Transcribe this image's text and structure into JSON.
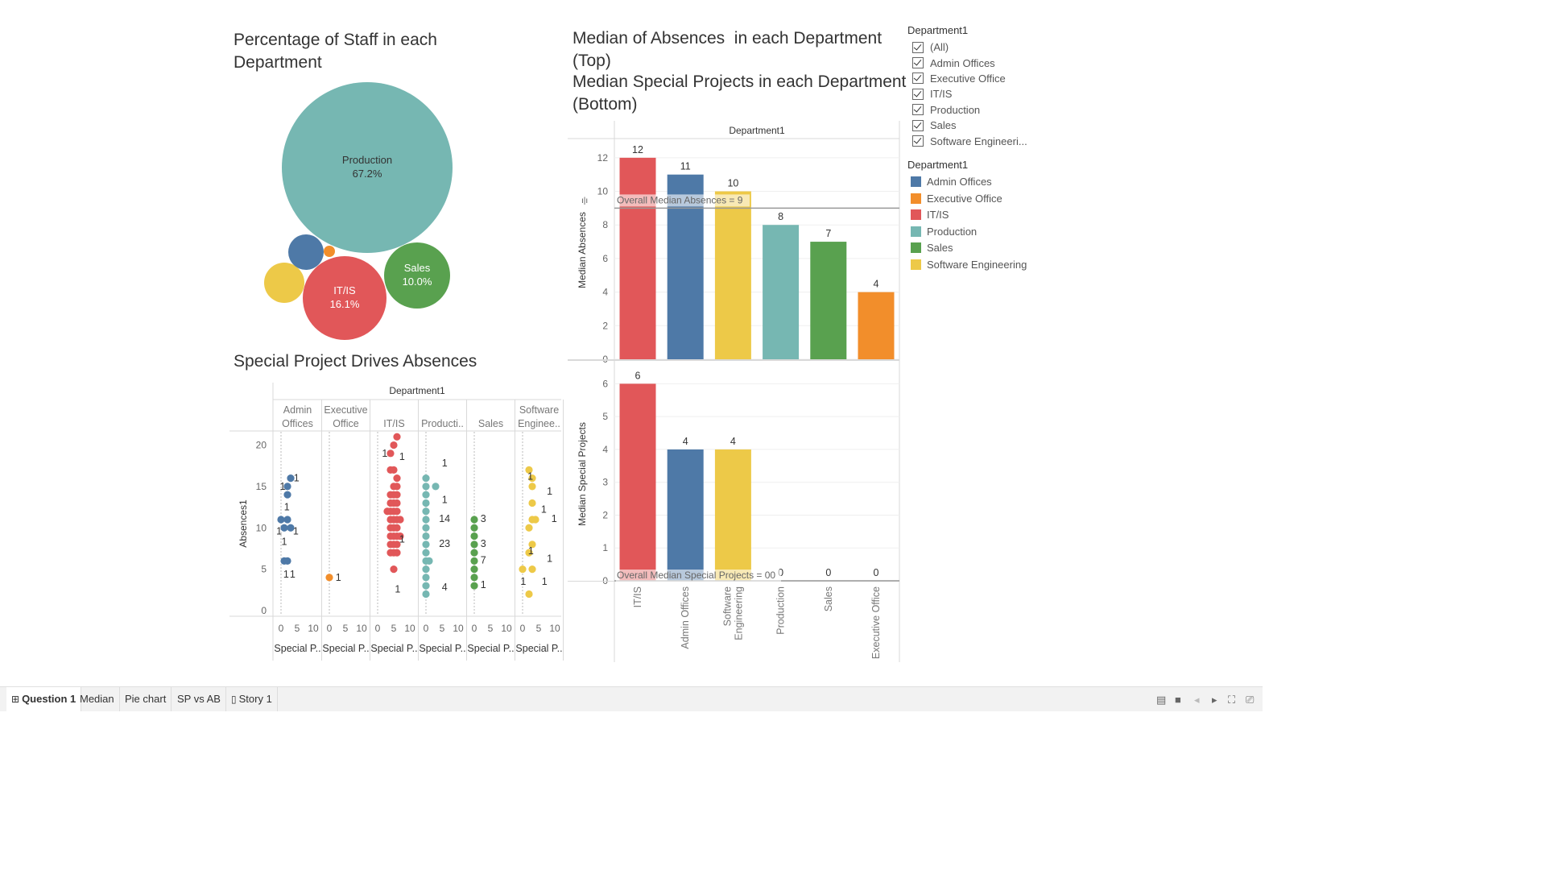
{
  "colors": {
    "Admin Offices": "#4e79a7",
    "Executive Office": "#f28e2b",
    "IT/IS": "#e15759",
    "Production": "#76b7b2",
    "Sales": "#59a14f",
    "Software Engineering": "#edc948"
  },
  "bubble": {
    "title": "Percentage of Staff in each Department"
  },
  "scatter": {
    "title": "Special Project Drives Absences",
    "header": "Department1",
    "ylabel": "Absences1",
    "column_titles": [
      [
        "Admin",
        "Offices"
      ],
      [
        "Executive",
        "Office"
      ],
      [
        "IT/IS"
      ],
      [
        "Producti.."
      ],
      [
        "Sales"
      ],
      [
        "Software",
        "Enginee.."
      ]
    ],
    "column_xlabel": "Special P..",
    "y_ticks": [
      "20",
      "15",
      "10",
      "5",
      "0"
    ],
    "x_ticks": [
      "0",
      "5",
      "10"
    ]
  },
  "bar_top": {
    "title_line1": "Median of Absences  in each Department",
    "title_line2": "(Top)",
    "header": "Department1",
    "ylabel": "Median Absences",
    "y_ticks": [
      "12",
      "10",
      "8",
      "6",
      "4",
      "2",
      "0"
    ],
    "reference_label": "Overall Median Absences = 9"
  },
  "bar_bottom": {
    "title_line1": "Median Special Projects in each Department",
    "title_line2": "(Bottom)",
    "ylabel": "Median Special Projects",
    "y_ticks": [
      "6",
      "5",
      "4",
      "3",
      "2",
      "1",
      "0"
    ],
    "reference_label": "Overall Median Special Projects = 00"
  },
  "chart_data": [
    {
      "type": "bubble",
      "title": "Percentage of Staff in each Department",
      "items": [
        {
          "category": "Production",
          "value": 67.2,
          "label": "67.2%"
        },
        {
          "category": "IT/IS",
          "value": 16.1,
          "label": "16.1%"
        },
        {
          "category": "Sales",
          "value": 10.0,
          "label": "10.0%"
        },
        {
          "category": "Software Engineering",
          "value": 3.5
        },
        {
          "category": "Admin Offices",
          "value": 3.0
        },
        {
          "category": "Executive Office",
          "value": 0.3
        }
      ]
    },
    {
      "type": "scatter",
      "title": "Special Project Drives Absences",
      "xlabel": "Special P..",
      "ylabel": "Absences1",
      "xlim": [
        0,
        10
      ],
      "ylim": [
        0,
        22
      ],
      "facets": [
        {
          "category": "Admin Offices",
          "points": [
            [
              3,
              16
            ],
            [
              2,
              15
            ],
            [
              2,
              14
            ],
            [
              0,
              11
            ],
            [
              1,
              10
            ],
            [
              3,
              10
            ],
            [
              2,
              11
            ],
            [
              1,
              6
            ],
            [
              2,
              6
            ]
          ],
          "labels": [
            [
              "1",
              16
            ],
            [
              "1",
              15
            ],
            [
              "1",
              12.5
            ],
            [
              "1",
              9.6
            ],
            [
              "1",
              8.3
            ],
            [
              "1",
              9.6
            ],
            [
              "1",
              4.4
            ],
            [
              "1",
              4.4
            ]
          ]
        },
        {
          "category": "Executive Office",
          "points": [
            [
              0,
              4
            ]
          ],
          "labels": [
            [
              "1",
              4
            ]
          ]
        },
        {
          "category": "IT/IS",
          "points": [
            [
              6,
              21
            ],
            [
              5,
              20
            ],
            [
              4,
              19
            ],
            [
              4,
              17
            ],
            [
              5,
              17
            ],
            [
              6,
              16
            ],
            [
              5,
              15
            ],
            [
              6,
              15
            ],
            [
              4,
              14
            ],
            [
              5,
              14
            ],
            [
              6,
              14
            ],
            [
              4,
              13
            ],
            [
              5,
              13
            ],
            [
              6,
              13
            ],
            [
              3,
              12
            ],
            [
              4,
              12
            ],
            [
              5,
              12
            ],
            [
              6,
              12
            ],
            [
              4,
              11
            ],
            [
              5,
              11
            ],
            [
              6,
              11
            ],
            [
              7,
              11
            ],
            [
              4,
              10
            ],
            [
              5,
              10
            ],
            [
              6,
              10
            ],
            [
              4,
              9
            ],
            [
              5,
              9
            ],
            [
              6,
              9
            ],
            [
              7,
              9
            ],
            [
              4,
              8
            ],
            [
              5,
              8
            ],
            [
              6,
              8
            ],
            [
              4,
              7
            ],
            [
              5,
              7
            ],
            [
              6,
              7
            ],
            [
              5,
              5
            ]
          ],
          "labels": [
            [
              "1",
              19
            ],
            [
              "1",
              18.6
            ],
            [
              "1",
              8.6
            ],
            [
              "1",
              2.6
            ]
          ]
        },
        {
          "category": "Production",
          "points": [
            [
              0,
              16
            ],
            [
              0,
              15
            ],
            [
              3,
              15
            ],
            [
              0,
              14
            ],
            [
              0,
              13
            ],
            [
              0,
              12
            ],
            [
              0,
              11
            ],
            [
              0,
              10
            ],
            [
              0,
              9
            ],
            [
              0,
              8
            ],
            [
              0,
              7
            ],
            [
              0,
              6
            ],
            [
              1,
              6
            ],
            [
              0,
              5
            ],
            [
              0,
              4
            ],
            [
              0,
              3
            ],
            [
              0,
              2
            ]
          ],
          "labels": [
            [
              "1",
              17.8
            ],
            [
              "1",
              13.4
            ],
            [
              "14",
              11.1
            ],
            [
              "23",
              8.1
            ],
            [
              "4",
              2.8
            ]
          ]
        },
        {
          "category": "Sales",
          "points": [
            [
              0,
              11
            ],
            [
              0,
              10
            ],
            [
              0,
              9
            ],
            [
              0,
              8
            ],
            [
              0,
              7
            ],
            [
              0,
              6
            ],
            [
              0,
              5
            ],
            [
              0,
              4
            ],
            [
              0,
              3
            ]
          ],
          "labels": [
            [
              "3",
              11.1
            ],
            [
              "3",
              8.1
            ],
            [
              "7",
              6.1
            ],
            [
              "1",
              3.1
            ]
          ]
        },
        {
          "category": "Software Engineering",
          "points": [
            [
              2,
              17
            ],
            [
              3,
              16
            ],
            [
              3,
              15
            ],
            [
              3,
              13
            ],
            [
              3,
              11
            ],
            [
              4,
              11
            ],
            [
              2,
              10
            ],
            [
              3,
              8
            ],
            [
              2,
              7
            ],
            [
              0,
              5
            ],
            [
              3,
              5
            ],
            [
              2,
              2
            ]
          ],
          "labels": [
            [
              "1",
              16.2
            ],
            [
              "1",
              14.4
            ],
            [
              "1",
              12.2
            ],
            [
              "1",
              11.1
            ],
            [
              "1",
              7.2
            ],
            [
              "1",
              6.3
            ],
            [
              "1",
              3.5
            ],
            [
              "1",
              3.5
            ]
          ]
        }
      ]
    },
    {
      "type": "bar",
      "title": "Median of Absences  in each Department (Top)",
      "xlabel": "Department1",
      "ylabel": "Median Absences",
      "categories": [
        "IT/IS",
        "Admin Offices",
        "Software Engineering",
        "Production",
        "Sales",
        "Executive Office"
      ],
      "values": [
        12,
        11,
        10,
        8,
        7,
        4
      ],
      "ylim": [
        0,
        13
      ],
      "reference_line": {
        "value": 9,
        "label": "Overall Median Absences = 9"
      }
    },
    {
      "type": "bar",
      "title": "Median Special Projects in each Department (Bottom)",
      "ylabel": "Median Special Projects",
      "categories": [
        "IT/IS",
        "Admin Offices",
        "Software Engineering",
        "Production",
        "Sales",
        "Executive Office"
      ],
      "category_labels": [
        [
          "IT/IS"
        ],
        [
          "Admin Offices"
        ],
        [
          "Software",
          "Engineering"
        ],
        [
          "Production"
        ],
        [
          "Sales"
        ],
        [
          "Executive Office"
        ]
      ],
      "values": [
        6,
        4,
        4,
        0,
        0,
        0
      ],
      "ylim": [
        0,
        6.5
      ],
      "reference_line": {
        "value": 0,
        "label": "Overall Median Special Projects = 00"
      }
    }
  ],
  "filter": {
    "title": "Department1",
    "items": [
      "(All)",
      "Admin Offices",
      "Executive Office",
      "IT/IS",
      "Production",
      "Sales",
      "Software Engineeri..."
    ]
  },
  "legend": {
    "title": "Department1",
    "items": [
      "Admin Offices",
      "Executive Office",
      "IT/IS",
      "Production",
      "Sales",
      "Software Engineering"
    ]
  },
  "tabs": [
    {
      "label": "Question 1",
      "icon": "grid-icon",
      "active": true
    },
    {
      "label": "Median"
    },
    {
      "label": "Pie chart"
    },
    {
      "label": "SP vs AB"
    },
    {
      "label": "Story 1",
      "icon": "book-icon"
    }
  ]
}
